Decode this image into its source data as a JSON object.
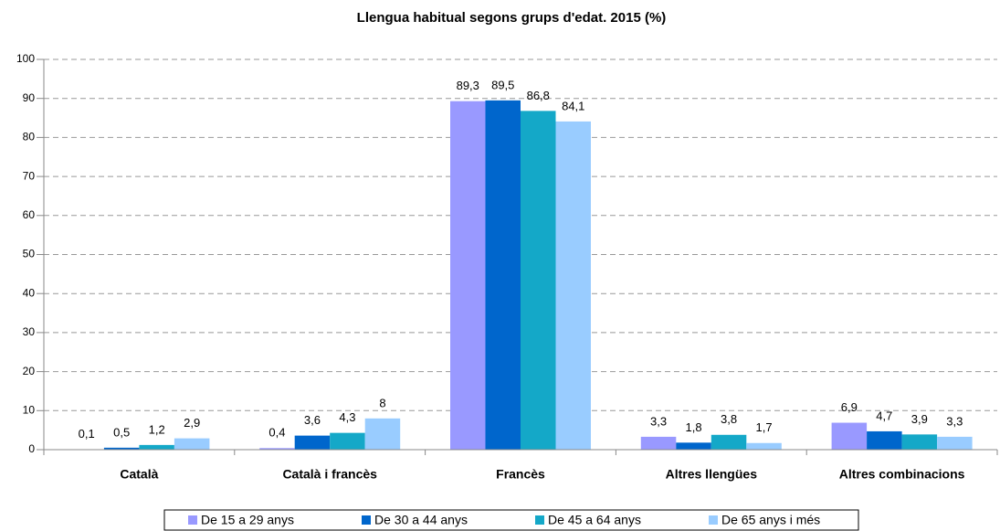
{
  "chart_data": {
    "type": "bar",
    "title": "Llengua habitual segons grups d'edat. 2015 (%)",
    "categories": [
      "Català",
      "Català i francès",
      "Francès",
      "Altres llengües",
      "Altres combinacions"
    ],
    "series": [
      {
        "name": "De 15 a 29 anys",
        "color": "#9999ff",
        "values": [
          0.1,
          0.4,
          89.3,
          3.3,
          6.9
        ],
        "value_labels": [
          "0,1",
          "0,4",
          "89,3",
          "3,3",
          "6,9"
        ]
      },
      {
        "name": "De 30 a 44 anys",
        "color": "#0066cc",
        "values": [
          0.5,
          3.6,
          89.5,
          1.8,
          4.7
        ],
        "value_labels": [
          "0,5",
          "3,6",
          "89,5",
          "1,8",
          "4,7"
        ]
      },
      {
        "name": "De 45 a 64 anys",
        "color": "#14a8c8",
        "values": [
          1.2,
          4.3,
          86.8,
          3.8,
          3.9
        ],
        "value_labels": [
          "1,2",
          "4,3",
          "86,8",
          "3,8",
          "3,9"
        ]
      },
      {
        "name": "De 65 anys i més",
        "color": "#99ccff",
        "values": [
          2.9,
          8,
          84.1,
          1.7,
          3.3
        ],
        "value_labels": [
          "2,9",
          "8",
          "84,1",
          "1,7",
          "3,3"
        ]
      }
    ],
    "ylim": [
      0,
      100
    ],
    "yticks": [
      0,
      10,
      20,
      30,
      40,
      50,
      60,
      70,
      80,
      90,
      100
    ],
    "grid": true,
    "legend": "bottom"
  }
}
